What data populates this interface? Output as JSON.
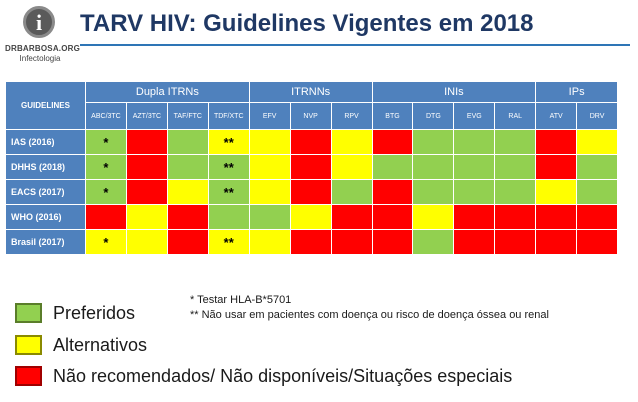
{
  "logo": {
    "symbol": "i",
    "line1": "DRBARBOSA.ORG",
    "line2": "Infectologia"
  },
  "title": "TARV HIV: Guidelines Vigentes em 2018",
  "colors": {
    "G": "#92d050",
    "Y": "#ffff00",
    "R": "#ff0000",
    "header": "#4f81bd",
    "title": "#1f3864"
  },
  "table": {
    "corner_label": "GUIDELINES",
    "groups": [
      {
        "label": "Dupla ITRNs",
        "span": 4
      },
      {
        "label": "ITRNNs",
        "span": 3
      },
      {
        "label": "INIs",
        "span": 4
      },
      {
        "label": "IPs",
        "span": 2
      }
    ],
    "columns": [
      "ABC/3TC",
      "AZT/3TC",
      "TAF/FTC",
      "TDF/XTC",
      "EFV",
      "NVP",
      "RPV",
      "BTG",
      "DTG",
      "EVG",
      "RAL",
      "ATV",
      "DRV"
    ],
    "rows": [
      {
        "label": "IAS (2016)",
        "cells": [
          "G",
          "R",
          "G",
          "Y",
          "Y",
          "R",
          "Y",
          "R",
          "G",
          "G",
          "G",
          "R",
          "Y"
        ],
        "marks": [
          "*",
          "",
          "",
          "**",
          "",
          "",
          "",
          "",
          "",
          "",
          "",
          "",
          ""
        ]
      },
      {
        "label": "DHHS (2018)",
        "cells": [
          "G",
          "R",
          "G",
          "G",
          "Y",
          "R",
          "Y",
          "G",
          "G",
          "G",
          "G",
          "R",
          "G"
        ],
        "marks": [
          "*",
          "",
          "",
          "**",
          "",
          "",
          "",
          "",
          "",
          "",
          "",
          "",
          ""
        ]
      },
      {
        "label": "EACS (2017)",
        "cells": [
          "G",
          "R",
          "Y",
          "G",
          "Y",
          "R",
          "G",
          "R",
          "G",
          "G",
          "G",
          "Y",
          "G"
        ],
        "marks": [
          "*",
          "",
          "",
          "**",
          "",
          "",
          "",
          "",
          "",
          "",
          "",
          "",
          ""
        ]
      },
      {
        "label": "WHO (2016)",
        "cells": [
          "R",
          "Y",
          "R",
          "G",
          "G",
          "Y",
          "R",
          "R",
          "Y",
          "R",
          "R",
          "R",
          "R"
        ],
        "marks": [
          "",
          "",
          "",
          "",
          "",
          "",
          "",
          "",
          "",
          "",
          "",
          "",
          ""
        ]
      },
      {
        "label": "Brasil (2017)",
        "cells": [
          "Y",
          "Y",
          "R",
          "Y",
          "Y",
          "R",
          "R",
          "R",
          "G",
          "R",
          "R",
          "R",
          "R"
        ],
        "marks": [
          "*",
          "",
          "",
          "**",
          "",
          "",
          "",
          "",
          "",
          "",
          "",
          "",
          ""
        ]
      }
    ]
  },
  "legend": [
    {
      "color": "G",
      "label": "Preferidos"
    },
    {
      "color": "Y",
      "label": "Alternativos"
    },
    {
      "color": "R",
      "label": "Não recomendados/ Não disponíveis/Situações especiais"
    }
  ],
  "notes": [
    "* Testar HLA-B*5701",
    "** Não usar em pacientes com doença ou risco de doença óssea ou renal"
  ]
}
